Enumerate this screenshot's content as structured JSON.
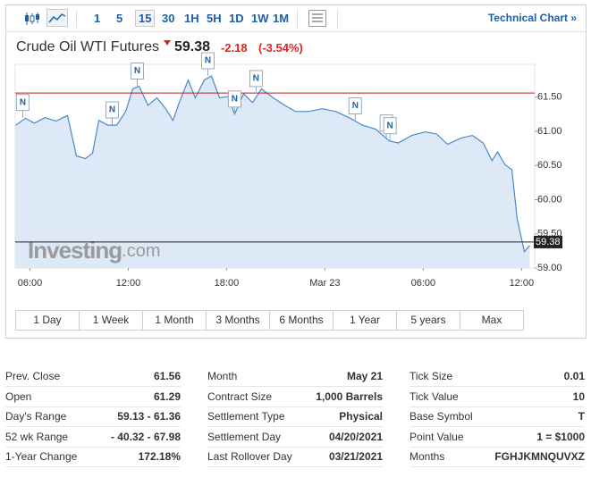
{
  "toolbar": {
    "intervals": [
      "1",
      "5",
      "15",
      "30",
      "1H",
      "5H",
      "1D",
      "1W",
      "1M"
    ],
    "active": "15",
    "technical_link": "Technical Chart »"
  },
  "header": {
    "name": "Crude Oil WTI Futures",
    "price": "59.38",
    "change": "-2.18",
    "change_pct": "(-3.54%)"
  },
  "chart_data": {
    "type": "line",
    "color": "#4a89c8",
    "fill": "#dde9f6",
    "x": [
      5.13,
      5.73,
      6.27,
      6.93,
      7.58,
      8.29,
      8.84,
      9.38,
      9.82,
      10.2,
      10.75,
      11.29,
      11.84,
      12.27,
      12.66,
      13.2,
      13.75,
      14.29,
      14.73,
      15.11,
      15.66,
      16.09,
      16.64,
      17.07,
      17.57,
      18.11,
      18.49,
      19.04,
      19.58,
      20.13,
      20.84,
      21.55,
      22.2,
      23.02,
      23.84,
      24.66,
      25.48,
      26.29,
      27.11,
      27.93,
      28.48,
      29.3,
      30.11,
      30.82,
      31.48,
      32.3,
      33.0,
      33.66,
      34.2,
      34.53,
      35.0,
      35.41,
      35.73,
      36.17,
      36.5
    ],
    "values": [
      61.09,
      61.19,
      61.12,
      61.2,
      61.15,
      61.23,
      60.64,
      60.6,
      60.68,
      61.16,
      61.09,
      61.09,
      61.29,
      61.62,
      61.66,
      61.38,
      61.49,
      61.33,
      61.16,
      61.42,
      61.75,
      61.49,
      61.75,
      61.81,
      61.49,
      61.51,
      61.25,
      61.55,
      61.42,
      61.62,
      61.49,
      61.38,
      61.29,
      61.29,
      61.33,
      61.29,
      61.2,
      61.09,
      61.03,
      60.86,
      60.83,
      60.94,
      60.99,
      60.96,
      60.81,
      60.9,
      60.94,
      60.83,
      60.57,
      60.7,
      60.51,
      60.44,
      59.72,
      59.24,
      59.33
    ],
    "xlim": [
      5.1,
      36.8
    ],
    "xticks": [
      {
        "value": 6,
        "label": "06:00"
      },
      {
        "value": 12,
        "label": "12:00"
      },
      {
        "value": 18,
        "label": "18:00"
      },
      {
        "value": 24,
        "label": "Mar 23"
      },
      {
        "value": 30,
        "label": "06:00"
      },
      {
        "value": 36,
        "label": "12:00"
      }
    ],
    "ylim": [
      59.0,
      61.98
    ],
    "yticks": [
      {
        "value": 59.0,
        "label": "59.00"
      },
      {
        "value": 59.5,
        "label": "59.50"
      },
      {
        "value": 60.0,
        "label": "60.00"
      },
      {
        "value": 60.5,
        "label": "60.50"
      },
      {
        "value": 61.0,
        "label": "61.00"
      },
      {
        "value": 61.5,
        "label": "61.50"
      }
    ],
    "prev_close_line": 61.56,
    "prev_close_color": "#b22222",
    "last_value": 59.38,
    "news": [
      {
        "x": 5.56,
        "y": 61.2,
        "label": "N"
      },
      {
        "x": 11.02,
        "y": 61.09,
        "label": "N"
      },
      {
        "x": 12.55,
        "y": 61.66,
        "label": "N"
      },
      {
        "x": 16.86,
        "y": 61.81,
        "label": "N"
      },
      {
        "x": 18.49,
        "y": 61.25,
        "label": "N"
      },
      {
        "x": 19.8,
        "y": 61.55,
        "label": "N"
      },
      {
        "x": 25.85,
        "y": 61.15,
        "label": "N"
      },
      {
        "x": 27.75,
        "y": 60.9,
        "label": "N"
      },
      {
        "x": 27.97,
        "y": 60.86,
        "label": "N"
      }
    ],
    "watermark": {
      "brand": "Investing",
      "suffix": ".com"
    }
  },
  "ranges": [
    "1 Day",
    "1 Week",
    "1 Month",
    "3 Months",
    "6 Months",
    "1 Year",
    "5 years",
    "Max"
  ],
  "stats": [
    [
      [
        "Prev. Close",
        "61.56"
      ],
      [
        "Open",
        "61.29"
      ],
      [
        "Day's Range",
        "59.13 - 61.36"
      ],
      [
        "52 wk Range",
        "- 40.32 - 67.98"
      ],
      [
        "1-Year Change",
        "172.18%"
      ]
    ],
    [
      [
        "Month",
        "May 21"
      ],
      [
        "Contract Size",
        "1,000 Barrels"
      ],
      [
        "Settlement Type",
        "Physical"
      ],
      [
        "Settlement Day",
        "04/20/2021"
      ],
      [
        "Last Rollover Day",
        "03/21/2021"
      ]
    ],
    [
      [
        "Tick Size",
        "0.01"
      ],
      [
        "Tick Value",
        "10"
      ],
      [
        "Base Symbol",
        "T"
      ],
      [
        "Point Value",
        "1 = $1000"
      ],
      [
        "Months",
        "FGHJKMNQUVXZ"
      ]
    ]
  ]
}
